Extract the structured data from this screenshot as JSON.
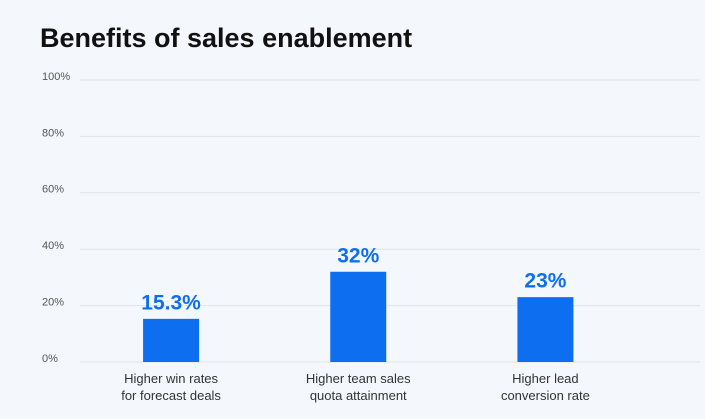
{
  "chart_data": {
    "type": "bar",
    "title": "Benefits of sales enablement",
    "categories": [
      "Higher win rates\nfor forecast deals",
      "Higher team sales\nquota attainment",
      "Higher lead\nconversion rate"
    ],
    "values": [
      15.3,
      32,
      23
    ],
    "value_labels": [
      "15.3%",
      "32%",
      "23%"
    ],
    "color": "#0d6ef0",
    "ylim": [
      0,
      100
    ],
    "yticks": [
      {
        "value": 0,
        "label": "0%"
      },
      {
        "value": 20,
        "label": "20%"
      },
      {
        "value": 40,
        "label": "40%"
      },
      {
        "value": 60,
        "label": "60%"
      },
      {
        "value": 80,
        "label": "80%"
      },
      {
        "value": 100,
        "label": "100%"
      }
    ],
    "grid": true
  }
}
